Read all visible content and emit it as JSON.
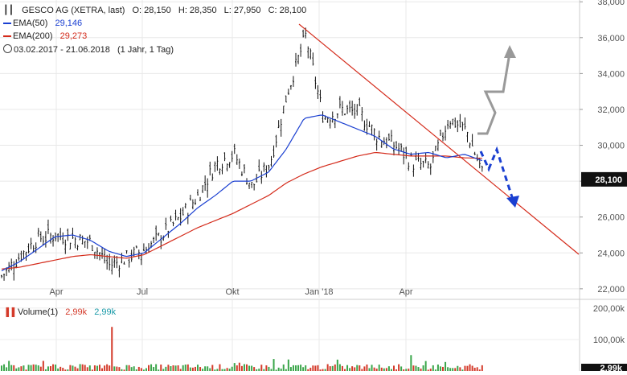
{
  "header": {
    "instrument": "GESCO AG (XETRA, last)",
    "open": "O: 28,150",
    "high": "H: 28,350",
    "low": "L: 27,950",
    "close": "C: 28,100"
  },
  "legend": {
    "ema50_label": "EMA(50)",
    "ema50_value": "29,146",
    "ema50_color": "#1a3fd1",
    "ema200_label": "EMA(200)",
    "ema200_value": "29,273",
    "ema200_color": "#d42a1a",
    "period": "03.02.2017 - 21.06.2018",
    "interval": "(1 Jahr, 1 Tag)"
  },
  "volume_legend": {
    "label": "Volume(1)",
    "value_red": "2,99k",
    "value_teal": "2,99k",
    "last_badge": "2,99k"
  },
  "price_badge": "28,100",
  "colors": {
    "candles": "#111111",
    "trendline": "#d42a1a",
    "up_arrow": "#999999",
    "down_arrow": "#1a3fd1",
    "volume_up": "#3aa64a",
    "volume_down": "#d43a2a"
  },
  "chart_data": {
    "type": "line",
    "y_axis": {
      "range": [
        21500,
        38100
      ],
      "tick_values": [
        22000,
        24000,
        26000,
        28000,
        30000,
        32000,
        34000,
        36000,
        38000
      ],
      "tick_labels": [
        "22,000",
        "24,000",
        "26,000",
        "",
        "30,000",
        "32,000",
        "34,000",
        "36,000",
        "38,000"
      ]
    },
    "x_axis": {
      "tick_labels": [
        "Apr",
        "Jul",
        "Okt",
        "Jan '18",
        "Apr"
      ]
    },
    "volume_axis": {
      "tick_labels": [
        "200,00k",
        "100,00k"
      ],
      "tick_values": [
        200000,
        100000
      ]
    },
    "grid": true,
    "series": [
      {
        "name": "EMA(50)",
        "values": [
          23000,
          23500,
          24200,
          24900,
          25000,
          24700,
          24100,
          23800,
          24000,
          24800,
          25600,
          26500,
          27200,
          28000,
          28000,
          28500,
          29800,
          31500,
          31700,
          31300,
          30900,
          30500,
          29800,
          29500,
          29600,
          29300,
          29500,
          29146
        ]
      },
      {
        "name": "EMA(200)",
        "values": [
          23100,
          23200,
          23400,
          23600,
          23800,
          23900,
          23800,
          23700,
          23900,
          24400,
          24900,
          25400,
          25800,
          26200,
          26700,
          27200,
          27900,
          28400,
          28800,
          29100,
          29400,
          29600,
          29500,
          29400,
          29400,
          29400,
          29300,
          29273
        ]
      }
    ],
    "price": [
      22700,
      23800,
      24800,
      25000,
      24800,
      24600,
      23300,
      23700,
      24200,
      25000,
      26000,
      27200,
      29000,
      29500,
      27700,
      29000,
      33000,
      36100,
      31500,
      32000,
      31800,
      30500,
      30000,
      29000,
      28800,
      31500,
      30800,
      28100
    ],
    "volume_peak": 140000
  }
}
